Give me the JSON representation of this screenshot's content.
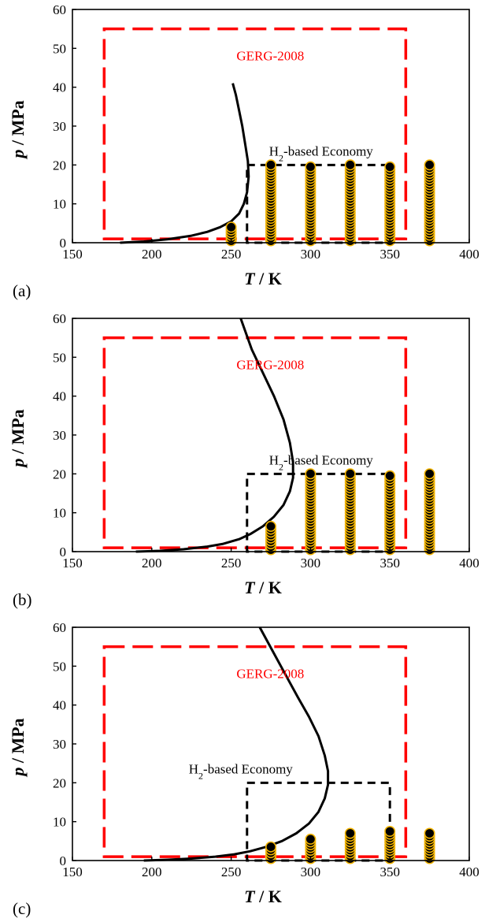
{
  "figure": {
    "colors": {
      "gerg_box": "#ff0000",
      "economy_box": "#000000",
      "curve": "#000000",
      "marker_fill": "#000000",
      "marker_edge": "#f2b400"
    }
  },
  "chart_data": [
    {
      "type": "scatter",
      "panel_label": "(a)",
      "xlabel_var": "T",
      "xlabel_unit": " / K",
      "ylabel_var": "p",
      "ylabel_unit": " / MPa",
      "xlim": [
        150,
        400
      ],
      "ylim": [
        0,
        60
      ],
      "xticks": [
        150,
        200,
        250,
        300,
        350,
        400
      ],
      "yticks": [
        0,
        10,
        20,
        30,
        40,
        50,
        60
      ],
      "grid": false,
      "gerg_box": {
        "label": "GERG-2008",
        "T": [
          170,
          360
        ],
        "p": [
          1,
          55
        ]
      },
      "economy_box": {
        "label_prefix": "H",
        "label_sub": "2",
        "label_suffix": "-based Economy",
        "T": [
          260,
          350
        ],
        "p": [
          0,
          20
        ]
      },
      "phase_curve": {
        "T": [
          180,
          195,
          210,
          225,
          235,
          243,
          250,
          255,
          258,
          260,
          261,
          260.5,
          259,
          257,
          255,
          253,
          251
        ],
        "p": [
          0,
          0.3,
          0.9,
          1.8,
          2.8,
          4.0,
          5.5,
          7.5,
          10,
          13,
          17,
          21,
          25,
          30,
          34,
          38,
          41
        ]
      },
      "series": [
        {
          "T": 250,
          "p_min": 0.5,
          "p_max": 4
        },
        {
          "T": 275,
          "p_min": 0.5,
          "p_max": 20
        },
        {
          "T": 300,
          "p_min": 0.5,
          "p_max": 19.5
        },
        {
          "T": 325,
          "p_min": 0.5,
          "p_max": 20
        },
        {
          "T": 350,
          "p_min": 0.5,
          "p_max": 19.5
        },
        {
          "T": 375,
          "p_min": 0.5,
          "p_max": 20
        }
      ]
    },
    {
      "type": "scatter",
      "panel_label": "(b)",
      "xlabel_var": "T",
      "xlabel_unit": " / K",
      "ylabel_var": "p",
      "ylabel_unit": " / MPa",
      "xlim": [
        150,
        400
      ],
      "ylim": [
        0,
        60
      ],
      "xticks": [
        150,
        200,
        250,
        300,
        350,
        400
      ],
      "yticks": [
        0,
        10,
        20,
        30,
        40,
        50,
        60
      ],
      "grid": false,
      "gerg_box": {
        "label": "GERG-2008",
        "T": [
          170,
          360
        ],
        "p": [
          1,
          55
        ]
      },
      "economy_box": {
        "label_prefix": "H",
        "label_sub": "2",
        "label_suffix": "-based Economy",
        "T": [
          260,
          350
        ],
        "p": [
          0,
          20
        ]
      },
      "phase_curve": {
        "T": [
          190,
          205,
          220,
          235,
          245,
          255,
          262,
          270,
          277,
          283,
          287,
          289,
          289,
          287,
          283,
          277,
          270,
          263,
          256
        ],
        "p": [
          0,
          0.2,
          0.6,
          1.3,
          2.0,
          3.2,
          4.5,
          6.5,
          9,
          12,
          15.5,
          19,
          23,
          28,
          34,
          40,
          46,
          52,
          60
        ]
      },
      "series": [
        {
          "T": 275,
          "p_min": 0.5,
          "p_max": 6.5
        },
        {
          "T": 300,
          "p_min": 0.5,
          "p_max": 20
        },
        {
          "T": 325,
          "p_min": 0.5,
          "p_max": 20
        },
        {
          "T": 350,
          "p_min": 0.5,
          "p_max": 19.5
        },
        {
          "T": 375,
          "p_min": 0.5,
          "p_max": 20
        }
      ]
    },
    {
      "type": "scatter",
      "panel_label": "(c)",
      "xlabel_var": "T",
      "xlabel_unit": " / K",
      "ylabel_var": "p",
      "ylabel_unit": " / MPa",
      "xlim": [
        150,
        400
      ],
      "ylim": [
        0,
        60
      ],
      "xticks": [
        150,
        200,
        250,
        300,
        350,
        400
      ],
      "yticks": [
        0,
        10,
        20,
        30,
        40,
        50,
        60
      ],
      "grid": false,
      "gerg_box": {
        "label": "GERG-2008",
        "T": [
          170,
          360
        ],
        "p": [
          1,
          55
        ]
      },
      "economy_box": {
        "label_prefix": "H",
        "label_sub": "2",
        "label_suffix": "-based Economy",
        "T": [
          260,
          350
        ],
        "p": [
          0,
          20
        ]
      },
      "phase_curve": {
        "T": [
          195,
          210,
          225,
          240,
          252,
          262,
          272,
          282,
          291,
          299,
          305,
          309,
          311,
          311,
          309,
          305,
          299,
          292,
          284,
          276,
          268
        ],
        "p": [
          0,
          0.2,
          0.5,
          1.0,
          1.6,
          2.4,
          3.5,
          5,
          7,
          9.5,
          12.5,
          16,
          19.5,
          23,
          27,
          32,
          37,
          42,
          48,
          54,
          60
        ]
      },
      "series": [
        {
          "T": 275,
          "p_min": 0.5,
          "p_max": 3.5
        },
        {
          "T": 300,
          "p_min": 0.5,
          "p_max": 5.5
        },
        {
          "T": 325,
          "p_min": 0.5,
          "p_max": 7
        },
        {
          "T": 350,
          "p_min": 0.5,
          "p_max": 7.5
        },
        {
          "T": 375,
          "p_min": 0.5,
          "p_max": 7
        }
      ]
    }
  ]
}
